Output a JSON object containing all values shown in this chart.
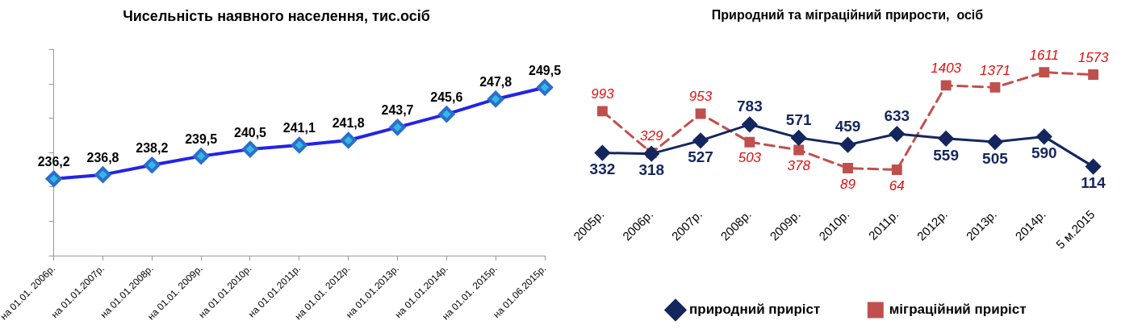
{
  "chart_data": [
    {
      "type": "line",
      "title": "Чисельність наявного населення, тис.осіб",
      "categories": [
        "на 01.01. 2006р.",
        "на 01.01.2007р.",
        "на 01.01.2008р.",
        "на 01.01. 2009р.",
        "на 01.01.2010р.",
        "на 01.01.2011р.",
        "на 01.01. 2012р.",
        "на 01.01.2013р.",
        "на 01.01.2014р.",
        "на 01.01. 2015р.",
        "на 01.06.2015р."
      ],
      "series": [
        {
          "color": "#2323e8",
          "values": [
            236.2,
            236.8,
            238.2,
            239.5,
            240.5,
            241.1,
            241.8,
            243.7,
            245.6,
            247.8,
            249.5
          ],
          "value_labels": [
            "236,2",
            "236,8",
            "238,2",
            "239,5",
            "240,5",
            "241,1",
            "241,8",
            "243,7",
            "245,6",
            "247,8",
            "249,5"
          ]
        }
      ],
      "ylim": [
        225,
        255
      ],
      "yticks": [
        {
          "value": 225,
          "label": null
        },
        {
          "value": 230,
          "label": null
        },
        {
          "value": 235,
          "label": null
        },
        {
          "value": 240,
          "label": null
        },
        {
          "value": 245,
          "label": null
        },
        {
          "value": 250,
          "label": null
        },
        {
          "value": 255,
          "label": null
        }
      ],
      "tick_labels": "x",
      "grid": false,
      "legend": false,
      "marker": "diamond",
      "line_style": "solid"
    },
    {
      "type": "line",
      "title": "Природний та міграційний прирости,  осіб",
      "categories": [
        "2005р.",
        "2006р.",
        "2007р.",
        "2008р.",
        "2009р.",
        "2010р.",
        "2011р.",
        "2012р.",
        "2013р.",
        "2014р.",
        "5 м.2015"
      ],
      "series": [
        {
          "name": "природний приріст",
          "color": "#13265e",
          "marker": "diamond",
          "line_style": "solid",
          "values": [
            332,
            318,
            527,
            783,
            571,
            459,
            633,
            559,
            505,
            590,
            114
          ]
        },
        {
          "name": "міграційний приріст",
          "color": "#c0504d",
          "marker": "square",
          "line_style": "dashed",
          "values": [
            993,
            329,
            953,
            503,
            378,
            89,
            64,
            1403,
            1371,
            1611,
            1573
          ]
        }
      ],
      "tick_labels": "x",
      "data_labels": true,
      "grid": false,
      "legend": "bottom"
    }
  ]
}
